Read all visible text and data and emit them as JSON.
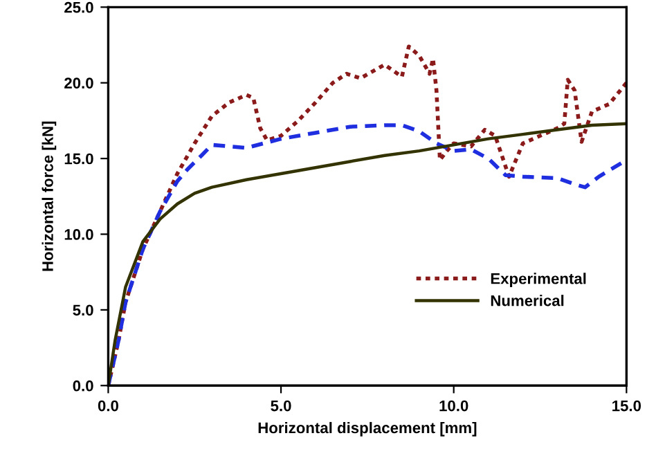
{
  "chart_data": {
    "type": "line",
    "xlabel": "Horizontal displacement [mm]",
    "ylabel": "Horizontal force [kN]",
    "xlim": [
      0,
      15
    ],
    "ylim": [
      0,
      25
    ],
    "xticks": [
      {
        "value": 0,
        "label": "0.0"
      },
      {
        "value": 5,
        "label": "5.0"
      },
      {
        "value": 10,
        "label": "10.0"
      },
      {
        "value": 15,
        "label": "15.0"
      }
    ],
    "yticks": [
      {
        "value": 0,
        "label": "0.0"
      },
      {
        "value": 5,
        "label": "5.0"
      },
      {
        "value": 10,
        "label": "10.0"
      },
      {
        "value": 15,
        "label": "15.0"
      },
      {
        "value": 20,
        "label": "20.0"
      },
      {
        "value": 25,
        "label": "25.0"
      }
    ],
    "grid": false,
    "legend": "center right",
    "marker": "none",
    "series": [
      {
        "name": "Experimental",
        "color": "#8b1a1a",
        "line_style": "dotted",
        "x": [
          0,
          0.3,
          0.5,
          1,
          1.5,
          2,
          2.5,
          3,
          3.5,
          4,
          4.2,
          4.4,
          4.6,
          5,
          5.5,
          6,
          6.5,
          6.9,
          7.3,
          8,
          8.5,
          8.7,
          9,
          9.3,
          9.4,
          9.5,
          9.6,
          9.8,
          10,
          10.5,
          10.9,
          11.2,
          11.6,
          12,
          12.5,
          13,
          13.2,
          13.3,
          13.5,
          13.7,
          14,
          14.5,
          15
        ],
        "values": [
          0,
          3,
          5.5,
          9,
          11.5,
          14,
          16,
          17.8,
          18.7,
          19.2,
          19,
          17,
          16.2,
          16.5,
          17.5,
          18.7,
          20,
          20.6,
          20.3,
          21.2,
          20.4,
          22.4,
          21.8,
          20.6,
          21.6,
          19.5,
          14.9,
          15.5,
          16,
          15.8,
          16.9,
          16.5,
          13.8,
          16,
          16.5,
          17,
          17.3,
          20.2,
          19.5,
          16.1,
          18.1,
          18.6,
          20
        ]
      },
      {
        "color": "#1f2fe0",
        "line_style": "dashed",
        "x": [
          0,
          0.3,
          0.5,
          1,
          1.5,
          2,
          2.3,
          2.7,
          3,
          3.5,
          4,
          4.5,
          5,
          6,
          7,
          8,
          8.5,
          9,
          9.5,
          10,
          10.5,
          11,
          11.5,
          12,
          13,
          13.5,
          13.8,
          14.2,
          15
        ],
        "values": [
          0,
          3,
          5.5,
          9,
          11.5,
          13.5,
          14.3,
          15.2,
          15.9,
          15.8,
          15.7,
          16,
          16.3,
          16.7,
          17.1,
          17.2,
          17.2,
          16.8,
          16,
          15.5,
          15.6,
          15,
          13.9,
          13.8,
          13.7,
          13.3,
          13.1,
          13.8,
          14.9
        ]
      },
      {
        "name": "Numerical",
        "color": "#333300",
        "line_style": "solid",
        "x": [
          0,
          0.2,
          0.5,
          1,
          1.5,
          2,
          2.5,
          3,
          4,
          5,
          6,
          7,
          8,
          9,
          10,
          11,
          12,
          13,
          14,
          15
        ],
        "values": [
          0,
          3,
          6.5,
          9.5,
          11,
          12,
          12.7,
          13.1,
          13.6,
          14,
          14.4,
          14.8,
          15.2,
          15.5,
          15.9,
          16.3,
          16.6,
          16.9,
          17.2,
          17.3
        ]
      }
    ]
  }
}
